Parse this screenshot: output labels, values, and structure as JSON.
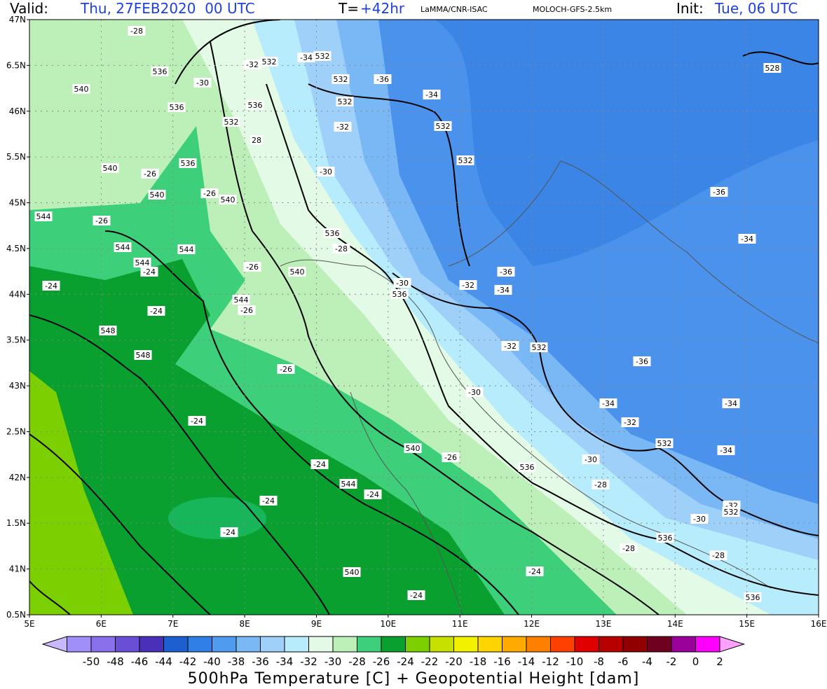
{
  "header": {
    "valid_label": "Valid:",
    "valid": "Thu, 27FEB2020  00 UTC",
    "lead_label": "T=",
    "lead": "+42hr",
    "institution": "LaMMA/CNR-ISAC",
    "model": "MOLOCH-GFS-2.5km",
    "init_label": "Init:",
    "init": "Tue, 06 UTC"
  },
  "map": {
    "lat_labels": [
      "47N",
      "6.5N",
      "46N",
      "5.5N",
      "45N",
      "4.5N",
      "44N",
      "3.5N",
      "43N",
      "2.5N",
      "42N",
      "1.5N",
      "41N",
      "0.5N"
    ],
    "lon_labels": [
      "5E",
      "6E",
      "7E",
      "8E",
      "9E",
      "10E",
      "11E",
      "12E",
      "13E",
      "14E",
      "15E",
      "16E"
    ],
    "contour_labels": [
      "-28",
      "536",
      "540",
      "-30",
      "536",
      "532",
      "536",
      "-32",
      "532",
      "-34",
      "532",
      "532",
      "-36",
      "-34",
      "532",
      "-32",
      "532",
      "532",
      "-30",
      "28",
      "536",
      "540",
      "-26",
      "540",
      "-26",
      "540",
      "-36",
      "528",
      "-34",
      "544",
      "-26",
      "544",
      "544",
      "544",
      "-24",
      "-26",
      "540",
      "-28",
      "536",
      "-36",
      "-34",
      "-32",
      "-30",
      "536",
      "-24",
      "544",
      "-26",
      "-24",
      "548",
      "548",
      "-26",
      "-32",
      "532",
      "-36",
      "-30",
      "-34",
      "-34",
      "-32",
      "-24",
      "540",
      "-26",
      "532",
      "-30",
      "-34",
      "536",
      "-28",
      "-24",
      "544",
      "-24",
      "-24",
      "-32",
      "532",
      "-30",
      "-24",
      "536",
      "-28",
      "-28",
      "540",
      "-24",
      "-24",
      "536"
    ]
  },
  "colorbar": {
    "levels": [
      -50,
      -48,
      -46,
      -44,
      -42,
      -40,
      -38,
      -36,
      -34,
      -32,
      -30,
      -28,
      -26,
      -24,
      -22,
      -20,
      -18,
      -16,
      -14,
      -12,
      -10,
      -8,
      -6,
      -4,
      -2,
      0,
      2
    ],
    "colors": [
      "#c9b8fb",
      "#9f8ff7",
      "#8a70ea",
      "#6a4fd6",
      "#4a30b8",
      "#1e5fd0",
      "#2f7fe6",
      "#4f9bef",
      "#79b7f5",
      "#9fd0f9",
      "#b6ecfb",
      "#e3fbe6",
      "#bdf0b8",
      "#3ecf7a",
      "#0aa030",
      "#7ccf00",
      "#c8e000",
      "#f2f200",
      "#ffd400",
      "#ffaa00",
      "#ff7f00",
      "#ff4000",
      "#e00000",
      "#b80000",
      "#900000",
      "#700020",
      "#9a009a",
      "#ff00ff",
      "#ffa0ff"
    ],
    "title": "500hPa Temperature [C] + Geopotential Height [dam]"
  }
}
